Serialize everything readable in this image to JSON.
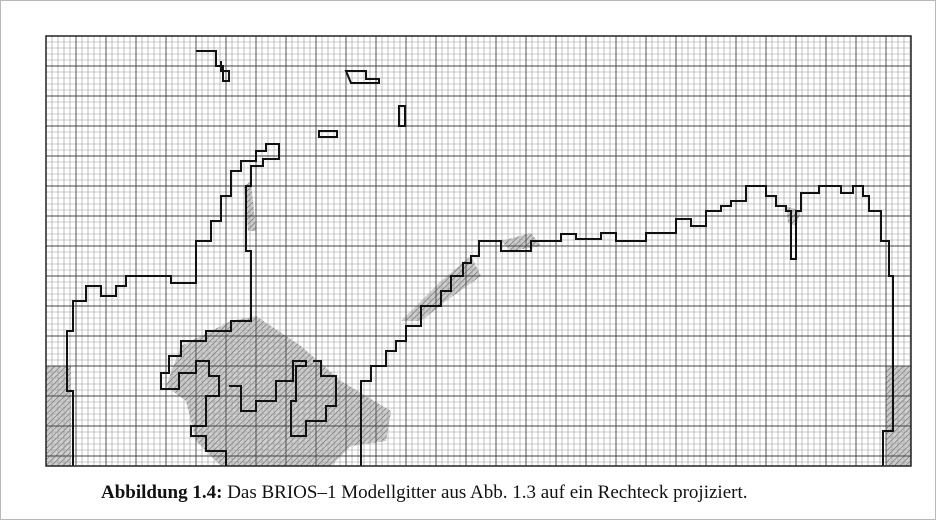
{
  "caption": {
    "label": "Abbildung 1.4:",
    "text": "Das BRIOS–1 Modellgitter aus Abb. 1.3 auf ein Rechteck projiziert."
  }
}
